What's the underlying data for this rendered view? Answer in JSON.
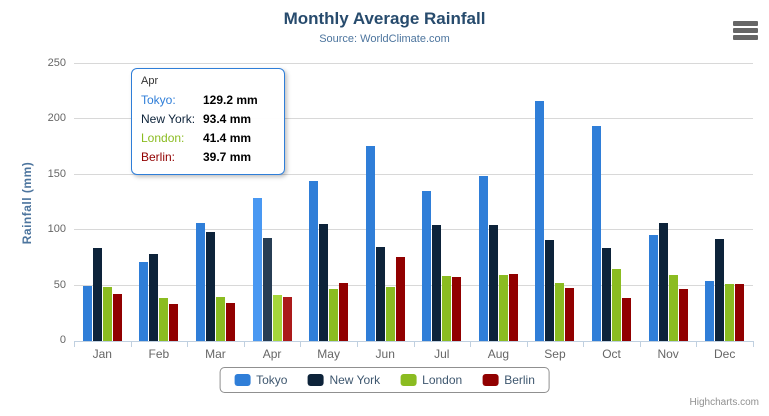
{
  "chart_data": {
    "type": "bar",
    "title": "Monthly Average Rainfall",
    "subtitle": "Source: WorldClimate.com",
    "xlabel": "",
    "ylabel": "Rainfall (mm)",
    "ylim": [
      0,
      250
    ],
    "yticks": [
      0,
      50,
      100,
      150,
      200,
      250
    ],
    "grid": true,
    "legend_position": "bottom",
    "categories": [
      "Jan",
      "Feb",
      "Mar",
      "Apr",
      "May",
      "Jun",
      "Jul",
      "Aug",
      "Sep",
      "Oct",
      "Nov",
      "Dec"
    ],
    "series": [
      {
        "name": "Tokyo",
        "color": "#2f7ed8",
        "values": [
          49.9,
          71.5,
          106.4,
          129.2,
          144.0,
          176.0,
          135.6,
          148.5,
          216.4,
          194.1,
          95.6,
          54.4
        ]
      },
      {
        "name": "New York",
        "color": "#0d233a",
        "values": [
          83.6,
          78.8,
          98.5,
          93.4,
          106.0,
          84.5,
          105.0,
          104.3,
          91.2,
          83.5,
          106.6,
          92.3
        ]
      },
      {
        "name": "London",
        "color": "#8bbc21",
        "values": [
          48.9,
          38.8,
          39.3,
          41.4,
          47.0,
          48.3,
          59.0,
          59.6,
          52.4,
          65.2,
          59.3,
          51.2
        ]
      },
      {
        "name": "Berlin",
        "color": "#910000",
        "values": [
          42.4,
          33.2,
          34.5,
          39.7,
          52.6,
          75.5,
          57.4,
          60.4,
          47.6,
          39.1,
          46.8,
          51.1
        ]
      }
    ],
    "hover_category_index": 3
  },
  "tooltip": {
    "header": "Apr",
    "border_color": "#2f7ed8",
    "rows": [
      {
        "name": "Tokyo:",
        "value": "129.2 mm",
        "color": "#2f7ed8"
      },
      {
        "name": "New York:",
        "value": "93.4 mm",
        "color": "#0d233a"
      },
      {
        "name": "London:",
        "value": "41.4 mm",
        "color": "#8bbc21"
      },
      {
        "name": "Berlin:",
        "value": "39.7 mm",
        "color": "#910000"
      }
    ]
  },
  "credits": {
    "label": "Highcharts.com"
  },
  "colors": {
    "title": "#274b6d",
    "subtitle": "#4d759e",
    "axis_title": "#4d759e",
    "tick_label": "#666666",
    "gridline": "#d8d8d8",
    "axis_line": "#c0d0e0",
    "legend_border": "#909090",
    "legend_text": "#3e576f",
    "credits_text": "#909090",
    "menu_icon": "#666666"
  }
}
